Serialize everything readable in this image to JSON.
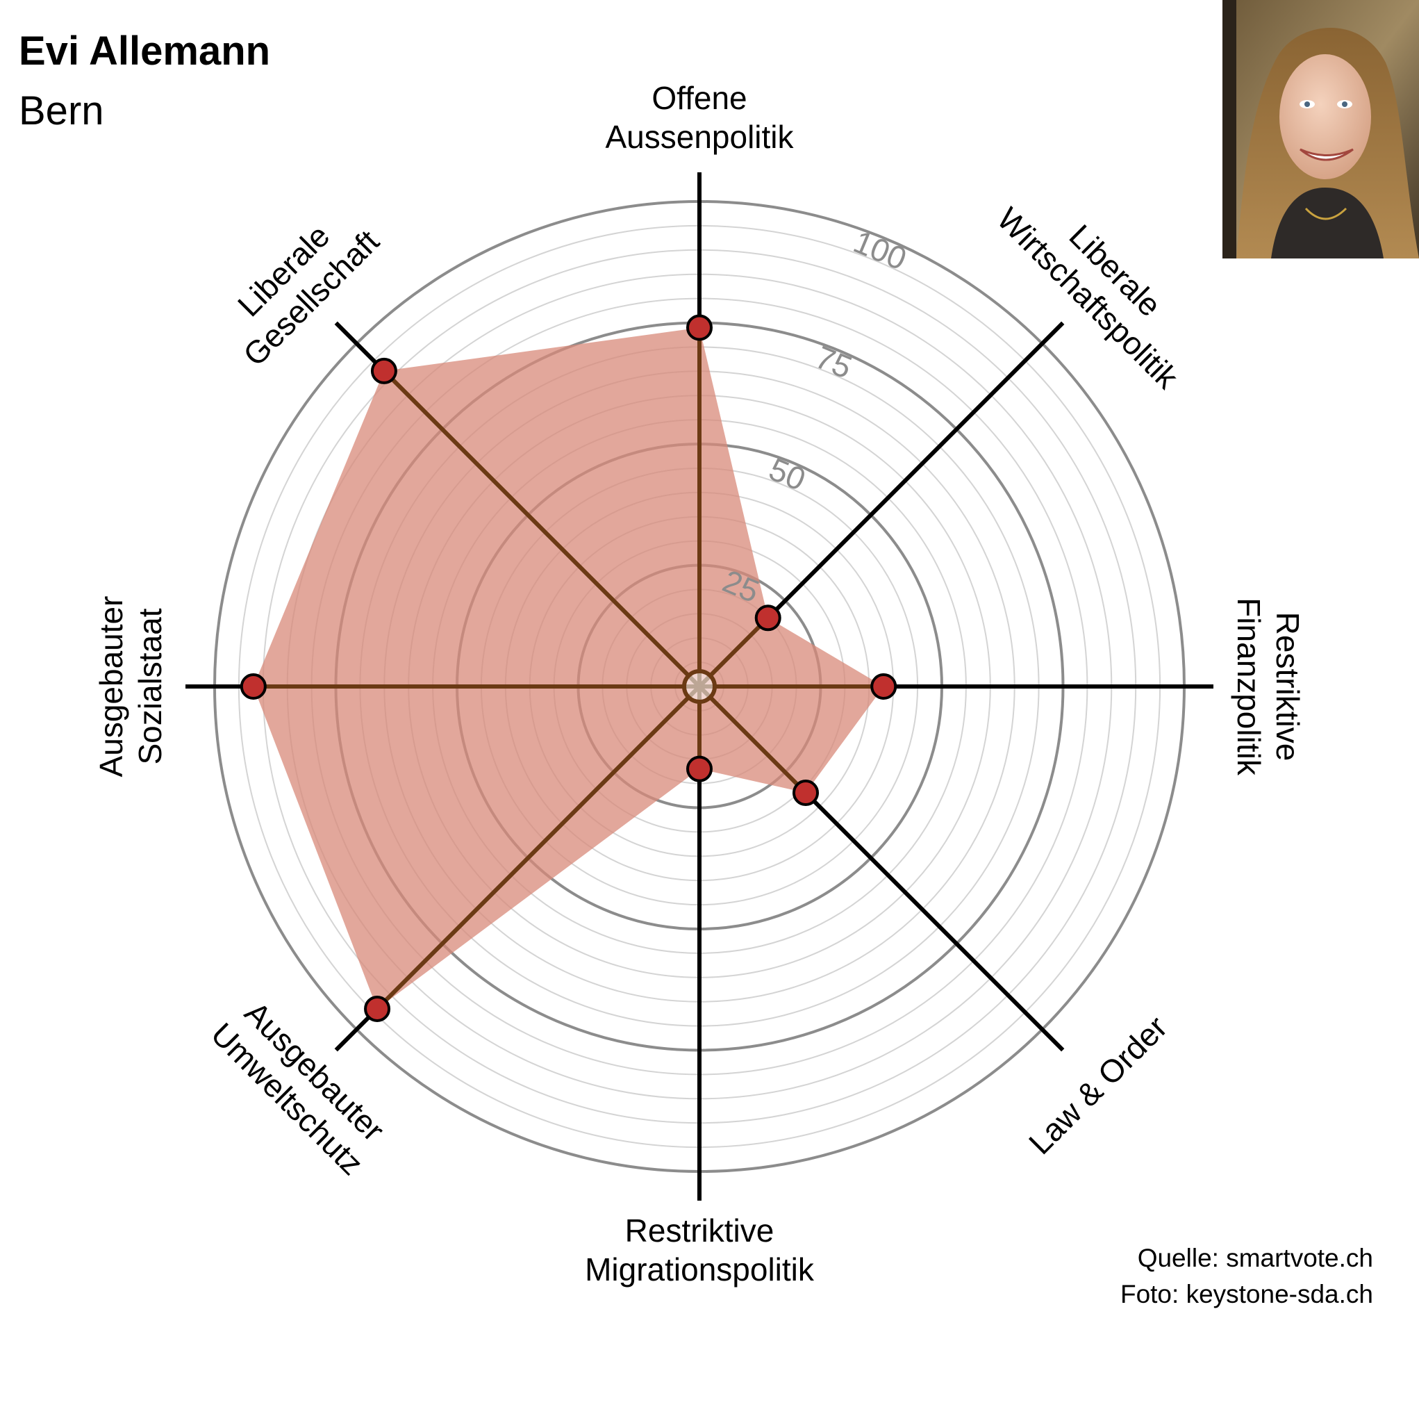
{
  "header": {
    "name": "Evi Allemann",
    "region": "Bern"
  },
  "photo": {
    "subject": "portrait photo of Evi Allemann"
  },
  "credits": {
    "source": "Quelle: smartvote.ch",
    "photo": "Foto: keystone-sda.ch"
  },
  "colors": {
    "fill": "#d88a79",
    "point": "#c0302e",
    "axis": "#000000",
    "axis_inside": "#6b3a14",
    "grid_major": "#8c8c8c",
    "grid_minor": "#d4d4d4",
    "tick_label": "#8c8c8c"
  },
  "chart_data": {
    "type": "radar",
    "axes": [
      {
        "lines": [
          "Offene",
          "Aussenpolitik"
        ],
        "value": 74
      },
      {
        "lines": [
          "Liberale",
          "Wirtschaftspolitik"
        ],
        "value": 20
      },
      {
        "lines": [
          "Restriktive",
          "Finanzpolitik"
        ],
        "value": 38
      },
      {
        "lines": [
          "Law & Order"
        ],
        "value": 31
      },
      {
        "lines": [
          "Restriktive",
          "Migrationspolitik"
        ],
        "value": 17
      },
      {
        "lines": [
          "Ausgebauter",
          "Umweltschutz"
        ],
        "value": 94
      },
      {
        "lines": [
          "Ausgebauter",
          "Sozialstaat"
        ],
        "value": 92
      },
      {
        "lines": [
          "Liberale",
          "Gesellschaft"
        ],
        "value": 92
      }
    ],
    "range": [
      0,
      100
    ],
    "ticks": [
      "25",
      "50",
      "75",
      "100"
    ],
    "tick_values": [
      25,
      50,
      75,
      100
    ],
    "minor_step": 5,
    "grid": true
  }
}
